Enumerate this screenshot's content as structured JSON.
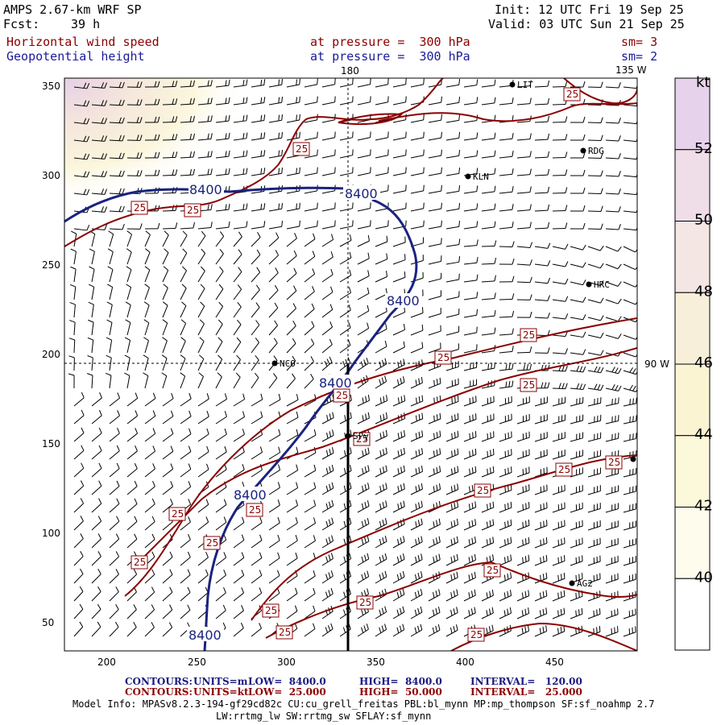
{
  "header": {
    "model": "AMPS 2.67-km WRF SP",
    "fcst_label": "Fcst:",
    "fcst_value": "39 h",
    "init": "Init: 12 UTC Fri 19 Sep 25",
    "valid": "Valid: 03 UTC Sun 21 Sep 25",
    "field1_name": "Horizontal wind speed",
    "field1_level": "at pressure =  300 hPa",
    "field1_sm": "sm= 3",
    "field2_name": "Geopotential height",
    "field2_level": "at pressure =  300 hPa",
    "field2_sm": "sm= 2"
  },
  "map": {
    "lon_top": "180",
    "lon_top_right": "135 W",
    "lon_right": "90 W",
    "x_ticks": [
      "200",
      "250",
      "300",
      "350",
      "400",
      "450"
    ],
    "y_ticks": [
      "350",
      "300",
      "250",
      "200",
      "150",
      "100",
      "50"
    ],
    "stations": [
      "LIT",
      "RDG",
      "KLN",
      "HRC",
      "NCO",
      "SPy",
      "AG2"
    ],
    "height_contour_label": "8400",
    "speed_contour_label": "25"
  },
  "colorbar": {
    "unit": "kt",
    "labels": [
      "52",
      "50",
      "48",
      "46",
      "44",
      "42",
      "40"
    ],
    "colors": [
      "#e6d2ea",
      "#efdde8",
      "#f3e6e3",
      "#f7efd9",
      "#faf4d2",
      "#fcf8da",
      "#fefced",
      "#ffffff"
    ]
  },
  "footer": {
    "c1_label": "CONTOURS:",
    "c1_units": "UNITS=m",
    "c1_low": "LOW=  8400.0",
    "c1_high": "HIGH=  8400.0",
    "c1_interval": "INTERVAL=   120.00",
    "c2_label": "CONTOURS:",
    "c2_units": "UNITS=kt",
    "c2_low": "LOW=  25.000",
    "c2_high": "HIGH=  50.000",
    "c2_interval": "INTERVAL=   25.000",
    "model_info": "Model Info: MPASv8.2.3-194-gf29cd82c CU:cu_grell_freitas PBL:bl_mynn MP:mp_thompson SF:sf_noahmp 2.7",
    "model_info2": "LW:rrtmg_lw SW:rrtmg_sw SFLAY:sf_mynn"
  },
  "colors": {
    "height_contour": "#1a237e",
    "speed_contour": "#8b0000",
    "barb": "#000000"
  }
}
